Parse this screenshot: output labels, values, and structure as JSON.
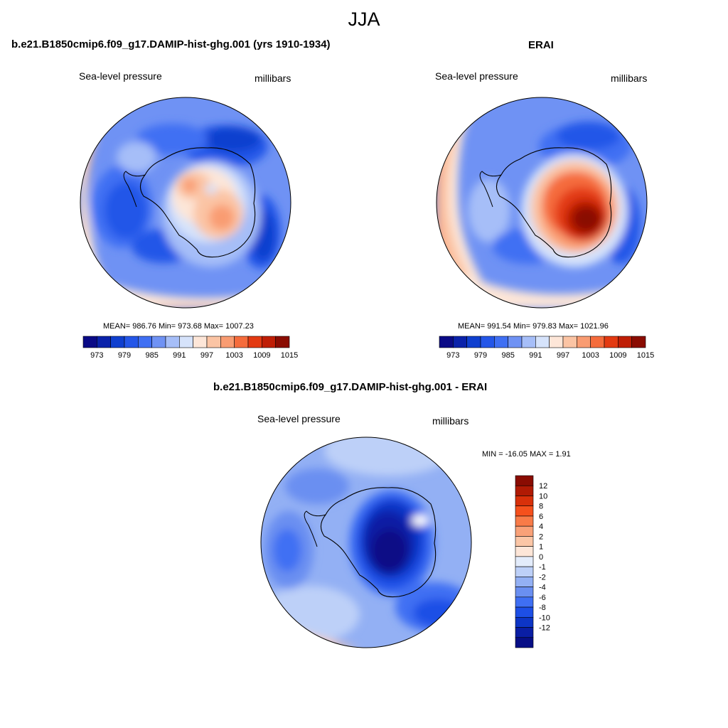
{
  "page": {
    "title": "JJA"
  },
  "panels": [
    {
      "title": "b.e21.B1850cmip6.f09_g17.DAMIP-hist-ghg.001 (yrs 1910-1934)",
      "variable": "Sea-level pressure",
      "units": "millibars",
      "stats": "MEAN= 986.76  Min= 973.68  Max= 1007.23",
      "mean": 986.76,
      "min": 973.68,
      "max": 1007.23
    },
    {
      "title": "ERAI",
      "variable": "Sea-level pressure",
      "units": "millibars",
      "stats": "MEAN= 991.54  Min= 979.83  Max= 1021.96",
      "mean": 991.54,
      "min": 979.83,
      "max": 1021.96
    },
    {
      "title": "b.e21.B1850cmip6.f09_g17.DAMIP-hist-ghg.001 - ERAI",
      "variable": "Sea-level pressure",
      "units": "millibars",
      "stats": "MIN = -16.05 MAX =   1.91",
      "min": -16.05,
      "max": 1.91
    }
  ],
  "colorbar_abs": {
    "colors": [
      "#0a0a86",
      "#0a22aa",
      "#0f3fcf",
      "#2456e8",
      "#3f6ff3",
      "#6f92f4",
      "#a6bef8",
      "#d6e3fb",
      "#fde6d8",
      "#fbc4a4",
      "#f99c72",
      "#f56c3c",
      "#e33a12",
      "#bf1e06",
      "#8a0c02"
    ],
    "tick_labels": [
      "973",
      "979",
      "985",
      "991",
      "997",
      "1003",
      "1009",
      "1015"
    ]
  },
  "colorbar_diff": {
    "colors_top_to_bottom": [
      "#8a0c02",
      "#b01a04",
      "#d8300a",
      "#f5501c",
      "#f87b48",
      "#f9a178",
      "#fbc6a6",
      "#fde6d8",
      "#e3ecfb",
      "#bdd0f8",
      "#93b0f4",
      "#6a8ff1",
      "#3f6ff3",
      "#1d4fe6",
      "#0d35c6",
      "#0a1ea4",
      "#070e86"
    ],
    "tick_labels": [
      "12",
      "10",
      "8",
      "6",
      "4",
      "2",
      "1",
      "0",
      "-1",
      "-2",
      "-4",
      "-6",
      "-8",
      "-10",
      "-12"
    ]
  },
  "legend_colors": {
    "coastline": "#000000"
  }
}
